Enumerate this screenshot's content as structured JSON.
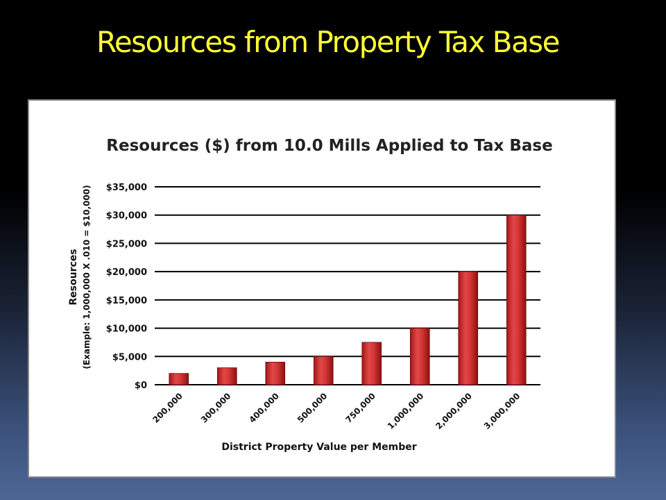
{
  "slide": {
    "title": "Resources from Property Tax Base"
  },
  "chart_data": {
    "type": "bar",
    "title": "Resources ($) from 10.0 Mills Applied to Tax Base",
    "ylabel": "Resources",
    "ylabel_sub": "(Example:  1,000,000 X .010 = $10,000)",
    "xlabel": "District Property Value per Member",
    "categories": [
      "200,000",
      "300,000",
      "400,000",
      "500,000",
      "750,000",
      "1,000,000",
      "2,000,000",
      "3,000,000"
    ],
    "values": [
      2000,
      3000,
      4000,
      5000,
      7500,
      10000,
      20000,
      30000
    ],
    "ylim": [
      0,
      35000
    ],
    "y_ticks": [
      0,
      5000,
      10000,
      15000,
      20000,
      25000,
      30000,
      35000
    ],
    "y_tick_labels": [
      "$0",
      "$5,000",
      "$10,000",
      "$15,000",
      "$20,000",
      "$25,000",
      "$30,000",
      "$35,000"
    ],
    "grid": true,
    "legend": "none",
    "bar_color": "#cc2222"
  }
}
